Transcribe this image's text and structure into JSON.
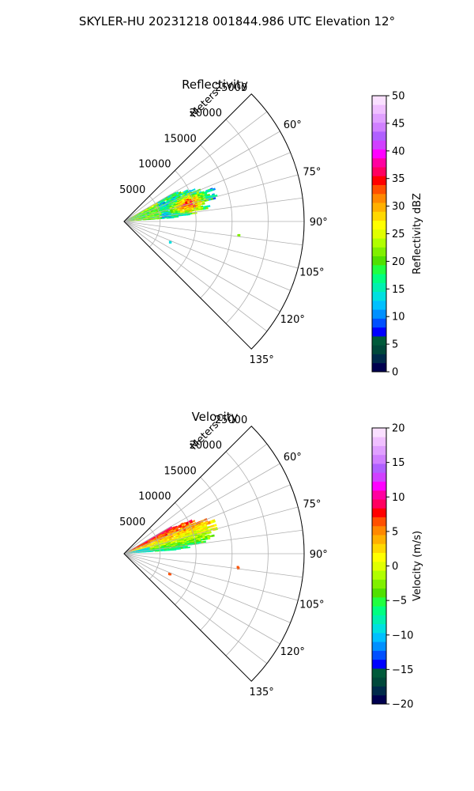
{
  "suptitle": "SKYLER-HU  20231218  001844.986 UTC Elevation 12°",
  "chart_data": [
    {
      "type": "ppi-sector",
      "title": "Reflectivity",
      "r_axis_label": "Meters",
      "r_ticks": [
        5000,
        10000,
        15000,
        20000,
        25000
      ],
      "r_max": 25000,
      "theta_ticks": [
        "60°",
        "75°",
        "90°",
        "105°",
        "120°",
        "135°"
      ],
      "theta_range_deg": [
        45,
        135
      ],
      "colorbar": {
        "label": "Reflectivity dBZ",
        "min": 0,
        "max": 50,
        "ticks": [
          "0",
          "5",
          "10",
          "15",
          "20",
          "25",
          "30",
          "35",
          "40",
          "45",
          "50"
        ],
        "colors": [
          "#00004f",
          "#002a4a",
          "#00483a",
          "#005a3a",
          "#0000ff",
          "#0050ff",
          "#0090ff",
          "#00c0ff",
          "#00e0e0",
          "#00f0b0",
          "#00ff80",
          "#20ff40",
          "#50e000",
          "#80f000",
          "#b0ff00",
          "#e0ff00",
          "#ffff00",
          "#ffd800",
          "#ffb000",
          "#ff8800",
          "#ff5000",
          "#ff0000",
          "#ff0060",
          "#ff00a0",
          "#ff00ff",
          "#d040ff",
          "#b060ff",
          "#d080ff",
          "#e0a0ff",
          "#f0c0ff",
          "#fae0ff"
        ]
      },
      "echo": {
        "main": {
          "az_min": 60,
          "az_max": 86,
          "r_max": 13000
        },
        "core": {
          "az": 75,
          "r": 9000,
          "value": 35
        },
        "stray": [
          {
            "az": 97,
            "r": 16000,
            "value": 22
          },
          {
            "az": 114,
            "r": 7000,
            "value": 13
          }
        ]
      }
    },
    {
      "type": "ppi-sector",
      "title": "Velocity",
      "r_axis_label": "Meters",
      "r_ticks": [
        5000,
        10000,
        15000,
        20000,
        25000
      ],
      "r_max": 25000,
      "theta_ticks": [
        "60°",
        "75°",
        "90°",
        "105°",
        "120°",
        "135°"
      ],
      "theta_range_deg": [
        45,
        135
      ],
      "colorbar": {
        "label": "Velocity (m/s)",
        "min": -20,
        "max": 20,
        "ticks": [
          "−20",
          "−15",
          "−10",
          "−5",
          "0",
          "5",
          "10",
          "15",
          "20"
        ],
        "colors": [
          "#00004f",
          "#002a4a",
          "#00483a",
          "#005a3a",
          "#0000ff",
          "#0050ff",
          "#0090ff",
          "#00c0ff",
          "#00e0e0",
          "#00f0b0",
          "#00ff80",
          "#20ff40",
          "#50e000",
          "#80f000",
          "#b0ff00",
          "#e0ff00",
          "#ffff00",
          "#ffd800",
          "#ffb000",
          "#ff8800",
          "#ff5000",
          "#ff0000",
          "#ff0060",
          "#ff00a0",
          "#ff00ff",
          "#d040ff",
          "#b060ff",
          "#d080ff",
          "#e0a0ff",
          "#f0c0ff",
          "#fae0ff"
        ]
      },
      "echo": {
        "main": {
          "az_min": 60,
          "az_max": 86,
          "r_max": 13000
        },
        "core": {
          "az": 68,
          "r": 9000,
          "value": 10
        },
        "stray": [
          {
            "az": 97,
            "r": 16000,
            "value": 6
          },
          {
            "az": 114,
            "r": 7000,
            "value": 6
          }
        ]
      }
    }
  ]
}
